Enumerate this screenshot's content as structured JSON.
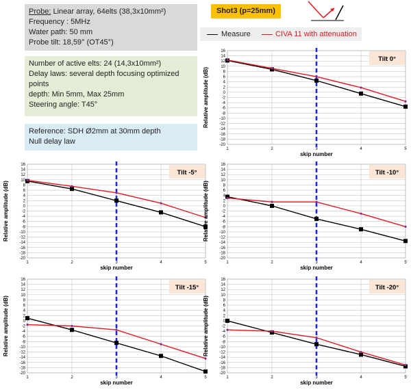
{
  "info": {
    "probe_label": "Probe:",
    "probe_rest": " Linear array, 64elts (38,3x10mm²)",
    "frequency": "Frequency : 5MHz",
    "water_path": "Water path: 50 mm",
    "probe_tilt": "Probe tilt: 18,59° (OT45°)",
    "active_elts": "Number of active elts: 24 (14,3x10mm²)",
    "delay_laws": "Delay laws: several depth focusing optimized points",
    "depth": "depth: Min 5mm, Max 25mm",
    "steering": "Steering angle: T45°",
    "reference": "Reference: SDH Ø2mm at 30mm depth",
    "null_delay": "Null delay law"
  },
  "shot_badge": "Shot3 (p=25mm)",
  "legend": {
    "measure": "Measure",
    "civa": "CIVA 11 with attenuation"
  },
  "colors": {
    "measure": "#000000",
    "civa": "#e0181e",
    "reference_line": "#1f2ad6",
    "badge": "#ffc000"
  },
  "chart_data": [
    {
      "type": "line",
      "tilt_label": "Tilt 0°",
      "xlabel": "skip number",
      "ylabel": "Relative amplitude (dB)",
      "x": [
        1,
        2,
        3,
        4,
        5
      ],
      "ylim": [
        -20,
        16
      ],
      "yticks": [
        16,
        14,
        12,
        10,
        8,
        6,
        4,
        2,
        0,
        -2,
        -4,
        -6,
        -8,
        -10,
        -12,
        -14,
        -16,
        -18,
        -20
      ],
      "reference_x": 3,
      "series": [
        {
          "name": "Measure",
          "values": [
            12.2,
            8.8,
            4.5,
            -0.5,
            -5.5
          ]
        },
        {
          "name": "CIVA 11 with attenuation",
          "values": [
            12.4,
            9.2,
            6.0,
            1.8,
            -3.5
          ]
        }
      ]
    },
    {
      "type": "line",
      "tilt_label": "Tilt -5°",
      "xlabel": "skip number",
      "ylabel": "Relative amplitude (dB)",
      "x": [
        1,
        2,
        3,
        4,
        5
      ],
      "ylim": [
        -20,
        16
      ],
      "yticks": [
        16,
        14,
        12,
        10,
        8,
        6,
        4,
        2,
        0,
        -2,
        -4,
        -6,
        -8,
        -10,
        -12,
        -14,
        -16,
        -18,
        -20
      ],
      "reference_x": 3,
      "series": [
        {
          "name": "Measure",
          "values": [
            9.5,
            6.5,
            2.0,
            -2.5,
            -8.0
          ]
        },
        {
          "name": "CIVA 11 with attenuation",
          "values": [
            9.8,
            7.5,
            5.0,
            1.0,
            -4.5
          ]
        }
      ]
    },
    {
      "type": "line",
      "tilt_label": "Tilt -10°",
      "xlabel": "skip number",
      "ylabel": "Relative amplitude (dB)",
      "x": [
        1,
        2,
        3,
        4,
        5
      ],
      "ylim": [
        -20,
        16
      ],
      "yticks": [
        16,
        14,
        12,
        10,
        8,
        6,
        4,
        2,
        0,
        -2,
        -4,
        -6,
        -8,
        -10,
        -12,
        -14,
        -16,
        -18,
        -20
      ],
      "reference_x": 3,
      "series": [
        {
          "name": "Measure",
          "values": [
            3.5,
            0.0,
            -5.0,
            -9.0,
            -13.5
          ]
        },
        {
          "name": "CIVA 11 with attenuation",
          "values": [
            3.0,
            1.5,
            1.5,
            -3.0,
            -8.0
          ]
        }
      ]
    },
    {
      "type": "line",
      "tilt_label": "Tilt -15°",
      "xlabel": "skip number",
      "ylabel": "Relative amplitude (dB)",
      "x": [
        1,
        2,
        3,
        4,
        5
      ],
      "ylim": [
        -20,
        16
      ],
      "yticks": [
        16,
        14,
        12,
        10,
        8,
        6,
        4,
        2,
        0,
        -2,
        -4,
        -6,
        -8,
        -10,
        -12,
        -14,
        -16,
        -18,
        -20
      ],
      "reference_x": 3,
      "series": [
        {
          "name": "Measure",
          "values": [
            1.0,
            -3.5,
            -8.5,
            -13.5,
            -19.5
          ]
        },
        {
          "name": "CIVA 11 with attenuation",
          "values": [
            -1.5,
            -2.0,
            -3.5,
            -9.0,
            -14.5
          ]
        }
      ]
    },
    {
      "type": "line",
      "tilt_label": "Tilt -20°",
      "xlabel": "skip number",
      "ylabel": "Relative amplitude (dB)",
      "x": [
        1,
        2,
        3,
        4,
        5
      ],
      "ylim": [
        -20,
        16
      ],
      "yticks": [
        16,
        14,
        12,
        10,
        8,
        6,
        4,
        2,
        0,
        -2,
        -4,
        -6,
        -8,
        -10,
        -12,
        -14,
        -16,
        -18,
        -20
      ],
      "reference_x": 3,
      "series": [
        {
          "name": "Measure",
          "values": [
            0.0,
            -4.5,
            -9.0,
            -13.0,
            -17.5
          ]
        },
        {
          "name": "CIVA 11 with attenuation",
          "values": [
            -3.5,
            -4.0,
            -6.5,
            -12.0,
            -17.0
          ]
        }
      ]
    }
  ]
}
